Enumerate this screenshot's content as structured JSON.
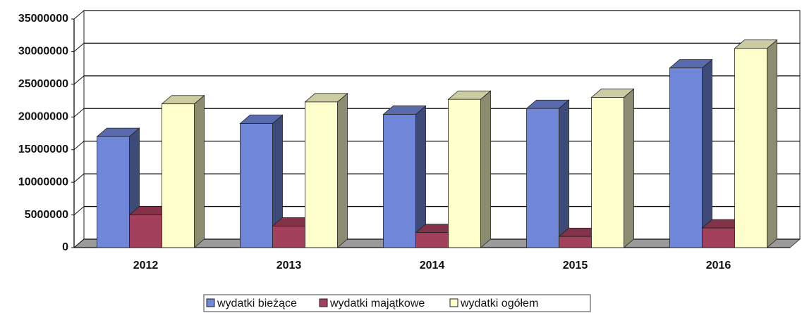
{
  "chart_data": {
    "type": "bar3d",
    "categories": [
      "2012",
      "2013",
      "2014",
      "2015",
      "2016"
    ],
    "series": [
      {
        "name": "wydatki bieżące",
        "color": "#7086d8",
        "values": [
          17000000,
          19000000,
          20400000,
          21300000,
          27500000
        ]
      },
      {
        "name": "wydatki majątkowe",
        "color": "#a3405c",
        "values": [
          5000000,
          3300000,
          2300000,
          1700000,
          3000000
        ]
      },
      {
        "name": "wydatki ogółem",
        "color": "#ffffcc",
        "values": [
          22000000,
          22300000,
          22700000,
          23000000,
          30500000
        ]
      }
    ],
    "ylim": [
      0,
      35000000
    ],
    "yticks": [
      0,
      5000000,
      10000000,
      15000000,
      20000000,
      25000000,
      30000000,
      35000000
    ],
    "grid": true,
    "legend": "bottom"
  }
}
